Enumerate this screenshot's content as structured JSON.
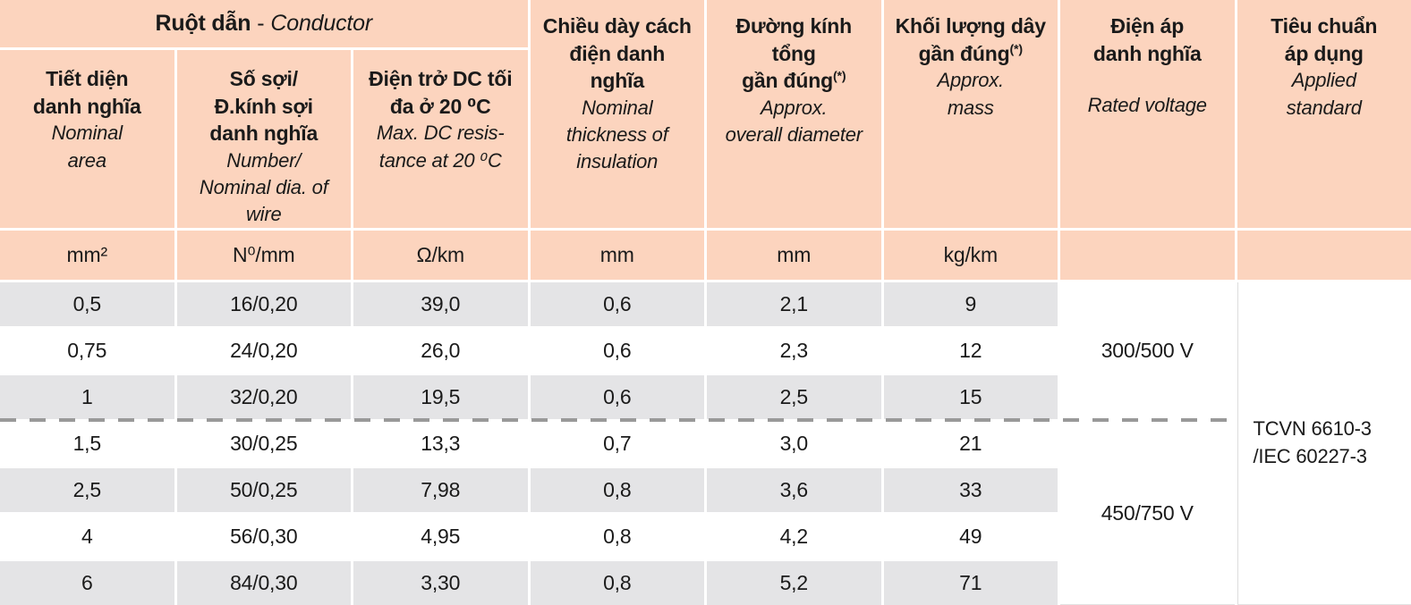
{
  "colors": {
    "header_bg": "#fcd4be",
    "row_alt_bg": "#e4e4e6",
    "row_bg": "#ffffff",
    "text": "#1a1a1a",
    "dash_line": "#999999",
    "faint_border": "#dcdcdc"
  },
  "header": {
    "group_vi": "Ruột dẫn",
    "group_sep": "-",
    "group_en": "Conductor",
    "cols": {
      "c1": {
        "vi": "Tiết diện\ndanh nghĩa",
        "en": "Nominal\narea"
      },
      "c2": {
        "vi": "Số sợi/\nĐ.kính sợi\ndanh nghĩa",
        "en": "Number/\nNominal dia. of\nwire"
      },
      "c3": {
        "vi": "Điện trở DC tối\nđa ở 20 ⁰C",
        "en": "Max. DC resis-\ntance at 20 ⁰C"
      },
      "c4": {
        "vi": "Chiều dày cách\nđiện danh\nnghĩa",
        "en": "Nominal\nthickness of\ninsulation"
      },
      "c5": {
        "vi": "Đường kính\ntổng\ngần đúng",
        "sup": "(*)",
        "en": "Approx.\noverall diameter"
      },
      "c6": {
        "vi": "Khối lượng dây\ngần đúng",
        "sup": "(*)",
        "en": "Approx.\nmass"
      },
      "c7": {
        "vi": "Điện áp\ndanh nghĩa",
        "en": "Rated voltage"
      },
      "c8": {
        "vi": "Tiêu chuẩn\náp dụng",
        "en": "Applied\nstandard"
      }
    }
  },
  "units": [
    "mm²",
    "N⁰/mm",
    "Ω/km",
    "mm",
    "mm",
    "kg/km",
    "",
    ""
  ],
  "rows": [
    {
      "area": "0,5",
      "strands": "16/0,20",
      "resistance": "39,0",
      "thickness": "0,6",
      "diameter": "2,1",
      "mass": "9"
    },
    {
      "area": "0,75",
      "strands": "24/0,20",
      "resistance": "26,0",
      "thickness": "0,6",
      "diameter": "2,3",
      "mass": "12"
    },
    {
      "area": "1",
      "strands": "32/0,20",
      "resistance": "19,5",
      "thickness": "0,6",
      "diameter": "2,5",
      "mass": "15"
    },
    {
      "area": "1,5",
      "strands": "30/0,25",
      "resistance": "13,3",
      "thickness": "0,7",
      "diameter": "3,0",
      "mass": "21"
    },
    {
      "area": "2,5",
      "strands": "50/0,25",
      "resistance": "7,98",
      "thickness": "0,8",
      "diameter": "3,6",
      "mass": "33"
    },
    {
      "area": "4",
      "strands": "56/0,30",
      "resistance": "4,95",
      "thickness": "0,8",
      "diameter": "4,2",
      "mass": "49"
    },
    {
      "area": "6",
      "strands": "84/0,30",
      "resistance": "3,30",
      "thickness": "0,8",
      "diameter": "5,2",
      "mass": "71"
    }
  ],
  "voltage": {
    "group1": "300/500 V",
    "group2": "450/750 V"
  },
  "standard": "TCVN 6610-3\n/IEC 60227-3"
}
